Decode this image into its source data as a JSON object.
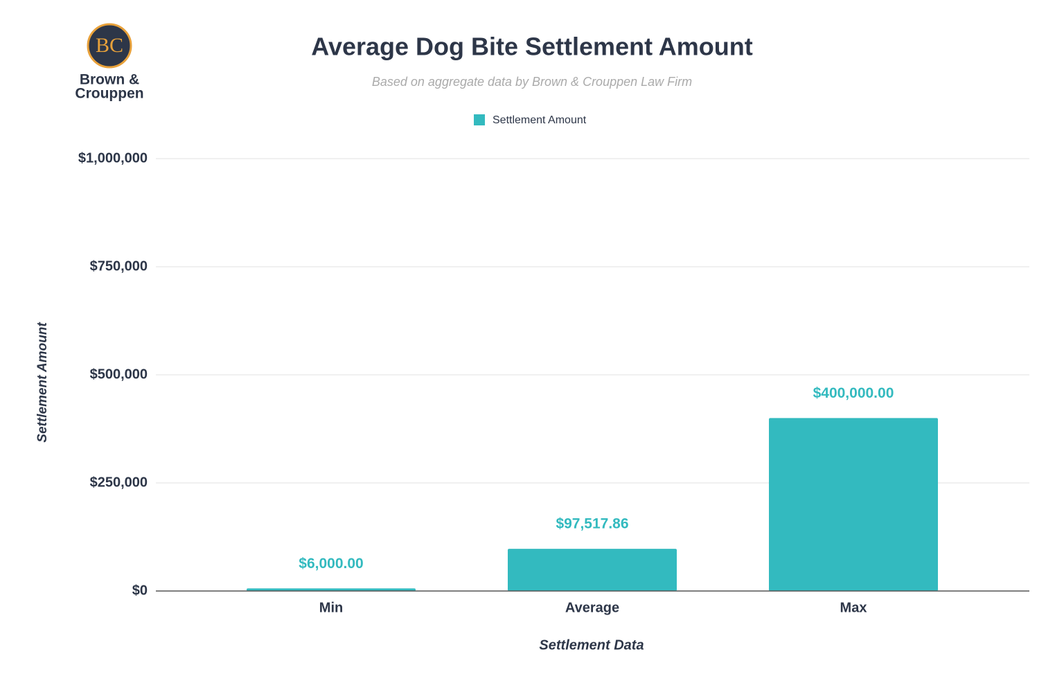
{
  "logo": {
    "initials": "BC",
    "name": [
      "Brown &",
      "Crouppen"
    ]
  },
  "chart_data": {
    "type": "bar",
    "title": "Average Dog Bite Settlement Amount",
    "subtitle": "Based on aggregate data by Brown & Crouppen Law Firm",
    "x_label": "Settlement Data",
    "y_label": "Settlement Amount",
    "categories": [
      "Min",
      "Average",
      "Max"
    ],
    "series": [
      {
        "name": "Settlement Amount",
        "color": "#33babf",
        "values": [
          6000,
          97517.86,
          400000
        ],
        "value_labels": [
          "$6,000.00",
          "$97,517.86",
          "$400,000.00"
        ]
      }
    ],
    "ylim": [
      0,
      1000000
    ],
    "yticks": [
      {
        "value": 0,
        "label": "$0"
      },
      {
        "value": 250000,
        "label": "$250,000"
      },
      {
        "value": 500000,
        "label": "$500,000"
      },
      {
        "value": 750000,
        "label": "$750,000"
      },
      {
        "value": 1000000,
        "label": "$1,000,000"
      }
    ],
    "grid": true
  }
}
